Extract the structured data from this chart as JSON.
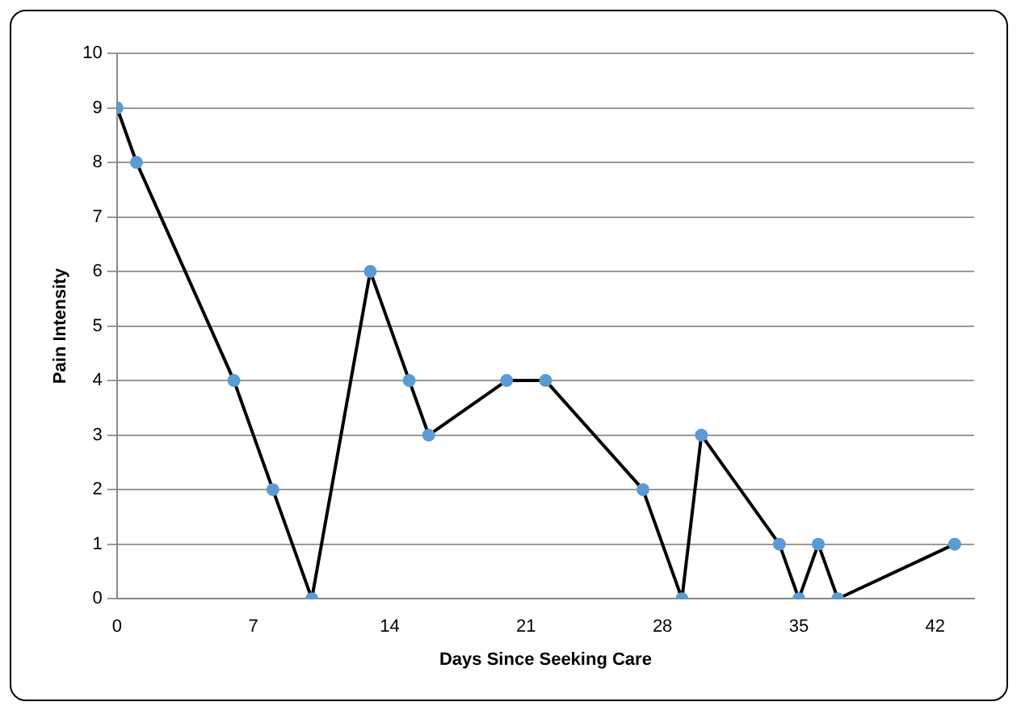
{
  "chart_data": {
    "type": "line",
    "xlabel": "Days Since Seeking Care",
    "ylabel": "Pain Intensity",
    "x": [
      0,
      1,
      6,
      8,
      10,
      13,
      15,
      16,
      20,
      22,
      27,
      29,
      30,
      34,
      35,
      36,
      37,
      43
    ],
    "series": [
      {
        "color": "#000000",
        "colors": [
          "#5b9bd5",
          "#5b9bd5",
          "#5b9bd5",
          "#5b9bd5",
          "#5b9bd5",
          "#5b9bd5",
          "#5b9bd5",
          "#5b9bd5",
          "#5b9bd5",
          "#5b9bd5",
          "#5b9bd5",
          "#5b9bd5",
          "#5b9bd5",
          "#5b9bd5",
          "#5b9bd5",
          "#5b9bd5",
          "#5b9bd5",
          "#5b9bd5"
        ],
        "values": [
          9,
          8,
          4,
          2,
          0,
          6,
          4,
          3,
          4,
          4,
          2,
          0,
          3,
          1,
          0,
          1,
          0,
          1
        ]
      }
    ],
    "xlim": [
      0,
      44
    ],
    "xticks": [
      0,
      7,
      14,
      21,
      28,
      35,
      42
    ],
    "ylim": [
      0,
      10
    ],
    "yticks": [
      0,
      1,
      2,
      3,
      4,
      5,
      6,
      7,
      8,
      9,
      10
    ],
    "grid": "y",
    "legend": false,
    "marker": "circle",
    "line_style": "solid"
  }
}
